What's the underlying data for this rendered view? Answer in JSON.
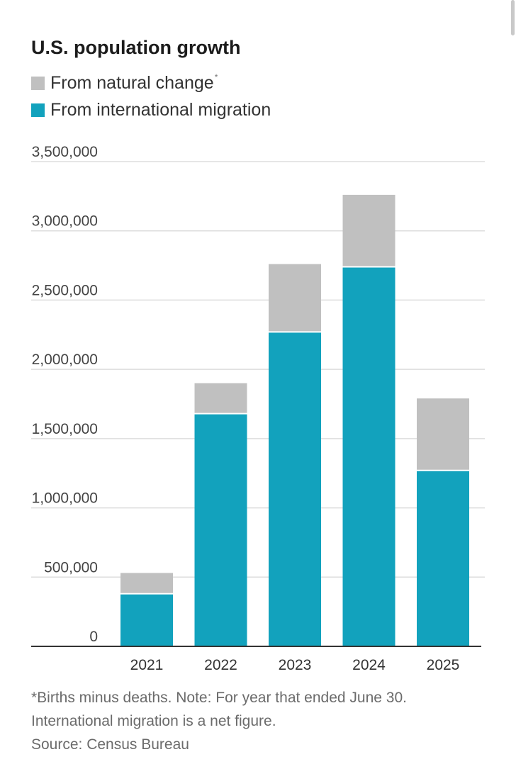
{
  "title": "U.S. population growth",
  "legend": [
    {
      "label": "From natural change",
      "marker": "*",
      "color": "#c0c0c0"
    },
    {
      "label": "From international migration",
      "marker": "",
      "color": "#12a2bd"
    }
  ],
  "chart_data": {
    "type": "bar",
    "stacked": true,
    "categories": [
      "2021",
      "2022",
      "2023",
      "2024",
      "2025"
    ],
    "series": [
      {
        "name": "From international migration",
        "color": "#12a2bd",
        "values": [
          380000,
          1680000,
          2270000,
          2740000,
          1270000
        ]
      },
      {
        "name": "From natural change",
        "color": "#c0c0c0",
        "values": [
          150000,
          220000,
          490000,
          520000,
          520000
        ]
      }
    ],
    "ylim": [
      0,
      3500000
    ],
    "yticks": [
      0,
      500000,
      1000000,
      1500000,
      2000000,
      2500000,
      3000000,
      3500000
    ],
    "ytick_labels": [
      "0",
      "500,000",
      "1,000,000",
      "1,500,000",
      "2,000,000",
      "2,500,000",
      "3,000,000",
      "3,500,000"
    ],
    "grid": true,
    "legend_position": "top-left"
  },
  "footer": {
    "note_line1": "*Births minus deaths. Note: For year that ended June 30.",
    "note_line2": "International migration is a net figure.",
    "source": "Source: Census Bureau"
  }
}
